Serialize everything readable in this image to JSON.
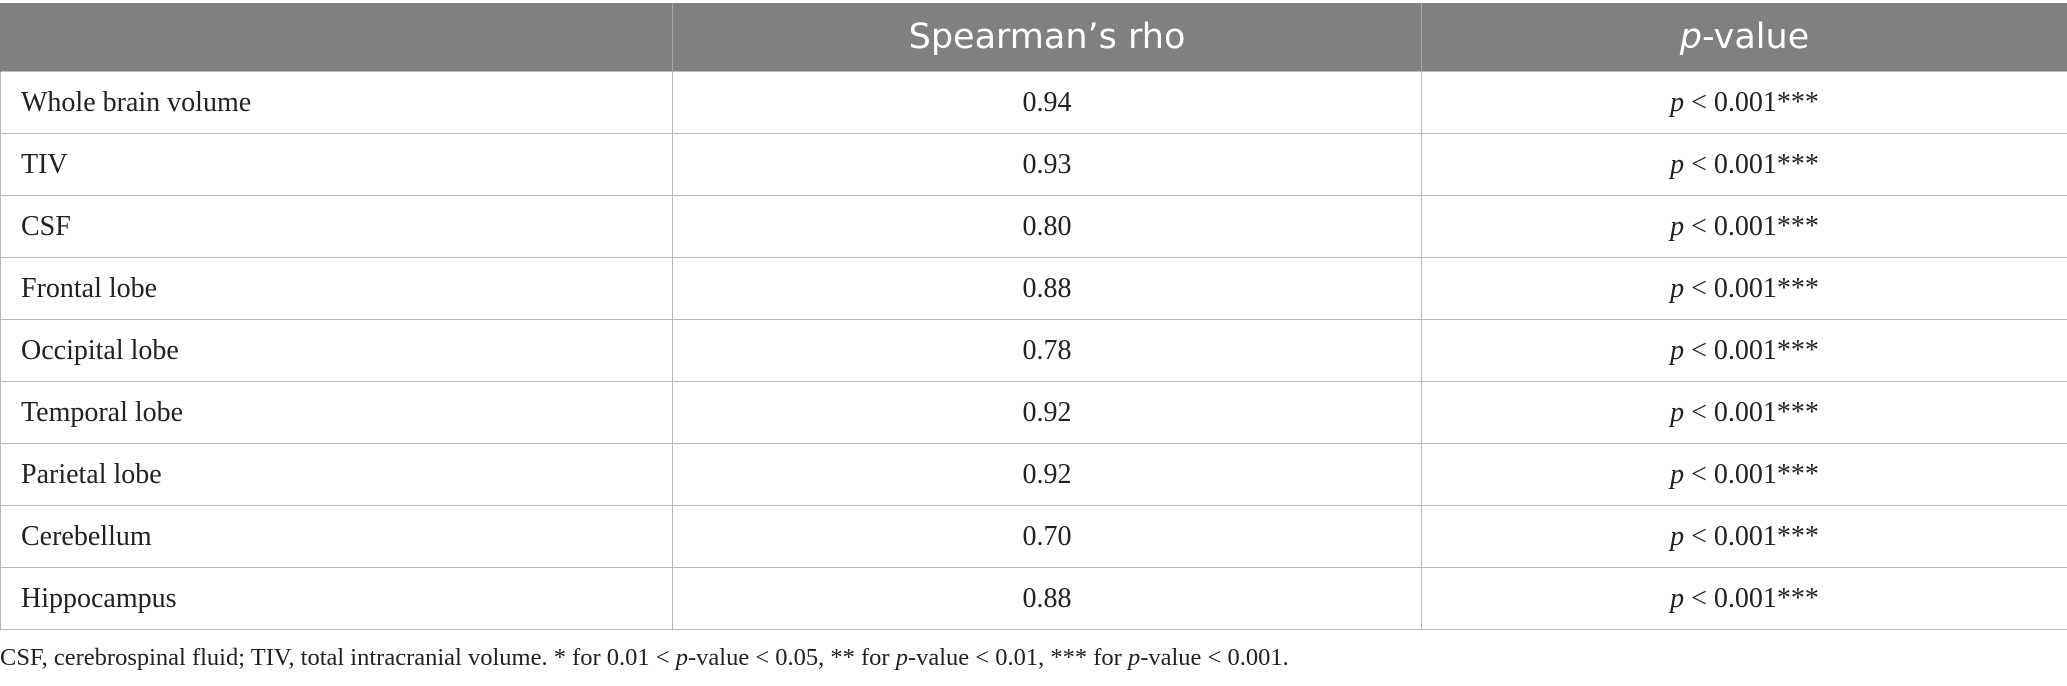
{
  "table": {
    "headers": {
      "col1": "",
      "col2": "Spearman’s rho",
      "col3_italic": "p",
      "col3_rest": "-value"
    },
    "rows": [
      {
        "label": "Whole brain volume",
        "rho": "0.94",
        "p_symbol": "p",
        "p_value": " < 0.001***"
      },
      {
        "label": "TIV",
        "rho": "0.93",
        "p_symbol": "p",
        "p_value": " < 0.001***"
      },
      {
        "label": "CSF",
        "rho": "0.80",
        "p_symbol": "p",
        "p_value": " < 0.001***"
      },
      {
        "label": "Frontal lobe",
        "rho": "0.88",
        "p_symbol": "p",
        "p_value": " < 0.001***"
      },
      {
        "label": "Occipital lobe",
        "rho": "0.78",
        "p_symbol": "p",
        "p_value": " < 0.001***"
      },
      {
        "label": "Temporal lobe",
        "rho": "0.92",
        "p_symbol": "p",
        "p_value": " < 0.001***"
      },
      {
        "label": "Parietal lobe",
        "rho": "0.92",
        "p_symbol": "p",
        "p_value": " < 0.001***"
      },
      {
        "label": "Cerebellum",
        "rho": "0.70",
        "p_symbol": "p",
        "p_value": " < 0.001***"
      },
      {
        "label": "Hippocampus",
        "rho": "0.88",
        "p_symbol": "p",
        "p_value": " < 0.001***"
      }
    ]
  },
  "footnote": {
    "part1": "CSF, cerebrospinal fluid; TIV, total intracranial volume. * for 0.01 < ",
    "p1": "p",
    "part2": "-value < 0.05, ** for ",
    "p2": "p",
    "part3": "-value < 0.01, *** for ",
    "p3": "p",
    "part4": "-value < 0.001."
  }
}
